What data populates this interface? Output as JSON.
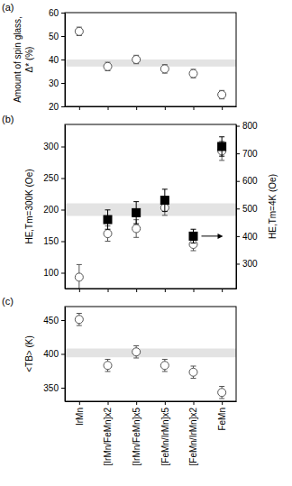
{
  "chart_data": [
    {
      "type": "scatter",
      "title": "(a)",
      "ylabel": [
        "Amount of spin glass,",
        "Δ* (%)"
      ],
      "categories": [
        "IrMn",
        "[IrMn/FeMn]x2",
        "[IrMn/FeMn]x5",
        "[FeMn/IrMn]x5",
        "[FeMn/IrMn]x2",
        "FeMn"
      ],
      "tick_labels": "y",
      "ylim": [
        20,
        60
      ],
      "yticks": [
        20,
        30,
        40,
        50,
        60
      ],
      "band": [
        37,
        40
      ],
      "series": [
        {
          "values": [
            52,
            37,
            40,
            36,
            34,
            25
          ],
          "errors": [
            1.8,
            1.8,
            1.8,
            1.8,
            1.8,
            1.8
          ],
          "marker": "circle-open",
          "color": "#555555"
        }
      ]
    },
    {
      "type": "scatter",
      "title": "(b)",
      "ylabel": "HE,Tm=300K (Oe)",
      "y2label": "HE,Tm=4K (Oe)",
      "categories": [
        "IrMn",
        "[IrMn/FeMn]x2",
        "[IrMn/FeMn]x5",
        "[FeMn/IrMn]x5",
        "[FeMn/IrMn]x2",
        "FeMn"
      ],
      "tick_labels": "y",
      "ylim": [
        75,
        335
      ],
      "yticks": [
        100,
        150,
        200,
        250,
        300
      ],
      "y2lim": [
        210,
        805
      ],
      "y2ticks": [
        300,
        400,
        500,
        600,
        700,
        800
      ],
      "band": [
        190,
        210
      ],
      "series": [
        {
          "values": [
            93,
            162,
            170,
            203,
            145,
            293
          ],
          "errors": [
            20,
            12,
            14,
            12,
            10,
            15
          ],
          "marker": "circle-open",
          "color": "#555555"
        },
        {
          "axis": "y2",
          "values": [
            null,
            460,
            485,
            530,
            400,
            725
          ],
          "errors": [
            null,
            35,
            40,
            40,
            25,
            35
          ],
          "marker": "square",
          "color": "#000000"
        }
      ]
    },
    {
      "type": "scatter",
      "title": "(c)",
      "ylabel": "<TB> (K)",
      "categories": [
        "IrMn",
        "[IrMn/FeMn]x2",
        "[IrMn/FeMn]x5",
        "[FeMn/IrMn]x5",
        "[FeMn/IrMn]x2",
        "FeMn"
      ],
      "ylim": [
        330,
        470
      ],
      "yticks": [
        350,
        400,
        450
      ],
      "band": [
        395,
        408
      ],
      "series": [
        {
          "values": [
            451,
            383,
            403,
            383,
            373,
            343
          ],
          "errors": [
            9,
            9,
            9,
            9,
            9,
            9
          ],
          "marker": "circle-open",
          "color": "#555555"
        }
      ]
    }
  ]
}
